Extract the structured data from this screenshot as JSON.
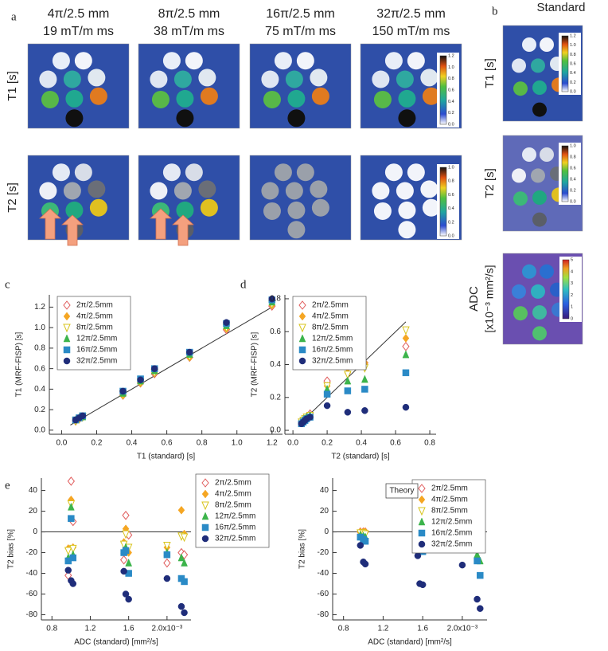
{
  "panel_labels": [
    "a",
    "b",
    "c",
    "d",
    "e"
  ],
  "panel_a": {
    "columns": [
      {
        "line1": "4π/2.5 mm",
        "line2": "19 mT/m ms"
      },
      {
        "line1": "8π/2.5 mm",
        "line2": "38 mT/m ms"
      },
      {
        "line1": "16π/2.5 mm",
        "line2": "75 mT/m ms"
      },
      {
        "line1": "32π/2.5 mm",
        "line2": "150 mT/m ms"
      }
    ],
    "rows": [
      "T1 [s]",
      "T2 [s]"
    ],
    "t1_colorbar": [
      "0.0",
      "0.2",
      "0.4",
      "0.6",
      "0.8",
      "1.0",
      "1.2"
    ],
    "t2_colorbar": [
      "0.0",
      "0.2",
      "0.4",
      "0.6",
      "0.8",
      "1.0"
    ]
  },
  "panel_b": {
    "title": "Standard",
    "rows": [
      "T1 [s]",
      "T2 [s]"
    ],
    "adc_label_1": "ADC",
    "adc_label_2": "[x10⁻³ mm²/s]",
    "t1_colorbar": [
      "0.0",
      "0.2",
      "0.4",
      "0.6",
      "0.8",
      "1.0",
      "1.2"
    ],
    "t2_colorbar": [
      "0.0",
      "0.2",
      "0.4",
      "0.6",
      "0.8",
      "1.0"
    ],
    "adc_colorbar": [
      "0",
      "1",
      "2",
      "3",
      "4",
      "5"
    ]
  },
  "chart_data": [
    {
      "type": "scatter",
      "x_label": "T1 (standard) [s]",
      "y_label": "T1 (MRF-FISP) [s]",
      "legend": "upper left",
      "x": [
        0.08,
        0.1,
        0.12,
        0.35,
        0.45,
        0.53,
        0.73,
        0.94,
        1.2
      ],
      "xlim": [
        -0.07,
        1.26
      ],
      "ylim": [
        -0.04,
        1.32
      ],
      "xticks": [
        {
          "value": 0,
          "label": "0.0"
        },
        {
          "value": 0.2,
          "label": "0.2"
        },
        {
          "value": 0.4,
          "label": "0.4"
        },
        {
          "value": 0.6,
          "label": "0.6"
        },
        {
          "value": 0.8,
          "label": "0.8"
        },
        {
          "value": 1,
          "label": "1.0"
        },
        {
          "value": 1.2,
          "label": "1.2"
        }
      ],
      "yticks": [
        {
          "value": 0,
          "label": "0.0"
        },
        {
          "value": 0.2,
          "label": "0.2"
        },
        {
          "value": 0.4,
          "label": "0.4"
        },
        {
          "value": 0.6,
          "label": "0.6"
        },
        {
          "value": 0.8,
          "label": "0.8"
        },
        {
          "value": 1,
          "label": "1.0"
        },
        {
          "value": 1.2,
          "label": "1.2"
        }
      ],
      "fit_line": {
        "x": [
          0.05,
          1.2
        ],
        "y": [
          0.05,
          1.2
        ]
      },
      "series": [
        {
          "name": "2π/2.5mm",
          "color": "#e05a5a",
          "marker": "open-diamond",
          "values": [
            0.09,
            0.11,
            0.13,
            0.34,
            0.46,
            0.55,
            0.71,
            0.98,
            1.21
          ]
        },
        {
          "name": "4π/2.5mm",
          "color": "#f5a623",
          "marker": "diamond",
          "values": [
            0.09,
            0.11,
            0.13,
            0.34,
            0.46,
            0.56,
            0.71,
            0.99,
            1.22
          ]
        },
        {
          "name": "8π/2.5mm",
          "color": "#d8c41c",
          "marker": "open-triangle-down",
          "values": [
            0.09,
            0.11,
            0.13,
            0.35,
            0.47,
            0.56,
            0.72,
            1.0,
            1.23
          ]
        },
        {
          "name": "12π/2.5mm",
          "color": "#3cb44b",
          "marker": "triangle",
          "values": [
            0.1,
            0.12,
            0.13,
            0.36,
            0.48,
            0.58,
            0.74,
            1.02,
            1.25
          ]
        },
        {
          "name": "16π/2.5mm",
          "color": "#2a8ac6",
          "marker": "square",
          "values": [
            0.1,
            0.12,
            0.14,
            0.38,
            0.5,
            0.6,
            0.76,
            1.04,
            1.27
          ]
        },
        {
          "name": "32π/2.5mm",
          "color": "#1f2d7a",
          "marker": "circle",
          "values": [
            0.1,
            0.12,
            0.14,
            0.38,
            0.49,
            0.6,
            0.76,
            1.05,
            1.28
          ]
        }
      ]
    },
    {
      "type": "scatter",
      "x_label": "T2 (standard) [s]",
      "y_label": "T2 (MRF-FISP) [s]",
      "legend": "upper left",
      "x": [
        0.05,
        0.06,
        0.07,
        0.08,
        0.1,
        0.2,
        0.32,
        0.42,
        0.66
      ],
      "xlim": [
        -0.047,
        0.837
      ],
      "ylim": [
        -0.024,
        0.824
      ],
      "xticks": [
        {
          "value": 0,
          "label": "0.0"
        },
        {
          "value": 0.2,
          "label": "0.2"
        },
        {
          "value": 0.4,
          "label": "0.4"
        },
        {
          "value": 0.6,
          "label": "0.6"
        },
        {
          "value": 0.8,
          "label": "0.8"
        }
      ],
      "yticks": [
        {
          "value": 0,
          "label": "0.0"
        },
        {
          "value": 0.2,
          "label": "0.2"
        },
        {
          "value": 0.4,
          "label": "0.4"
        },
        {
          "value": 0.6,
          "label": "0.6"
        },
        {
          "value": 0.8,
          "label": "0.8"
        }
      ],
      "fit_line": {
        "x": [
          0.05,
          0.66
        ],
        "y": [
          0.05,
          0.66
        ]
      },
      "series": [
        {
          "name": "2π/2.5mm",
          "color": "#e05a5a",
          "marker": "open-diamond",
          "values": [
            0.05,
            0.06,
            0.07,
            0.08,
            0.1,
            0.3,
            0.38,
            0.41,
            0.51
          ]
        },
        {
          "name": "4π/2.5mm",
          "color": "#f5a623",
          "marker": "diamond",
          "values": [
            0.05,
            0.06,
            0.07,
            0.08,
            0.09,
            0.27,
            0.35,
            0.41,
            0.56
          ]
        },
        {
          "name": "8π/2.5mm",
          "color": "#d8c41c",
          "marker": "open-triangle-down",
          "values": [
            0.05,
            0.06,
            0.07,
            0.08,
            0.09,
            0.27,
            0.34,
            0.38,
            0.61
          ]
        },
        {
          "name": "12π/2.5mm",
          "color": "#3cb44b",
          "marker": "triangle",
          "values": [
            0.05,
            0.06,
            0.07,
            0.08,
            0.09,
            0.25,
            0.3,
            0.31,
            0.46
          ]
        },
        {
          "name": "16π/2.5mm",
          "color": "#2a8ac6",
          "marker": "square",
          "values": [
            0.04,
            0.05,
            0.06,
            0.07,
            0.08,
            0.22,
            0.24,
            0.25,
            0.35
          ]
        },
        {
          "name": "32π/2.5mm",
          "color": "#1f2d7a",
          "marker": "circle",
          "values": [
            0.04,
            0.05,
            0.06,
            0.07,
            0.08,
            0.15,
            0.11,
            0.12,
            0.14
          ]
        }
      ]
    },
    {
      "type": "scatter",
      "x_label": "ADC (standard) [mm²/s]",
      "y_label": "T2 bias [%]",
      "legend": "outside right",
      "x": [
        0.97,
        1.0,
        1.02,
        1.55,
        1.57,
        1.6,
        2.0,
        2.15,
        2.18
      ],
      "xlim": [
        0.69,
        2.25
      ],
      "ylim": [
        -85,
        52
      ],
      "xticks": [
        0.8,
        1.2,
        1.6,
        {
          "value": 2,
          "label": "2.0x10⁻³"
        }
      ],
      "yticks": [
        -80,
        -60,
        -40,
        -20,
        0,
        20,
        40
      ],
      "reference_y": 0,
      "series": [
        {
          "name": "2π/2.5mm",
          "color": "#e05a5a",
          "marker": "open-diamond",
          "values": [
            -42,
            49,
            10,
            -27,
            16,
            -3,
            -30,
            -20,
            -22
          ]
        },
        {
          "name": "4π/2.5mm",
          "color": "#f5a623",
          "marker": "diamond",
          "values": [
            -16,
            31,
            -15,
            -10,
            3,
            -20,
            -15,
            21,
            -2
          ]
        },
        {
          "name": "8π/2.5mm",
          "color": "#d8c41c",
          "marker": "open-triangle-down",
          "values": [
            -18,
            27,
            -16,
            -12,
            -2,
            -15,
            -13,
            -4,
            -5
          ]
        },
        {
          "name": "12π/2.5mm",
          "color": "#3cb44b",
          "marker": "triangle",
          "values": [
            -25,
            24,
            -22,
            -18,
            -15,
            -30,
            -20,
            -25,
            -30
          ]
        },
        {
          "name": "16π/2.5mm",
          "color": "#2a8ac6",
          "marker": "square",
          "values": [
            -28,
            13,
            -25,
            -20,
            -18,
            -40,
            -22,
            -45,
            -48
          ]
        },
        {
          "name": "32π/2.5mm",
          "color": "#1f2d7a",
          "marker": "circle",
          "values": [
            -37,
            -47,
            -50,
            -38,
            -60,
            -65,
            -45,
            -72,
            -78
          ]
        }
      ]
    },
    {
      "type": "scatter",
      "x_label": "ADC (standard) [mm²/s]",
      "y_label": "T2 bias [%]",
      "legend": "upper right",
      "annotation": "Theory",
      "x": [
        0.97,
        1.0,
        1.02,
        1.55,
        1.57,
        1.6,
        2.0,
        2.15,
        2.18
      ],
      "xlim": [
        0.69,
        2.25
      ],
      "ylim": [
        -85,
        52
      ],
      "xticks": [
        0.8,
        1.2,
        1.6,
        {
          "value": 2,
          "label": "2.0x10⁻³"
        }
      ],
      "yticks": [
        -80,
        -60,
        -40,
        -20,
        0,
        20,
        40
      ],
      "reference_y": 0,
      "series": [
        {
          "name": "2π/2.5mm",
          "color": "#e05a5a",
          "marker": "open-diamond",
          "values": [
            0,
            0,
            0,
            0,
            0,
            0,
            0,
            0,
            0
          ]
        },
        {
          "name": "4π/2.5mm",
          "color": "#f5a623",
          "marker": "diamond",
          "values": [
            0,
            0,
            0,
            0,
            0,
            0,
            0,
            0,
            -1
          ]
        },
        {
          "name": "8π/2.5mm",
          "color": "#d8c41c",
          "marker": "open-triangle-down",
          "values": [
            -1,
            -1,
            -2,
            -1,
            -1,
            -2,
            -3,
            -10,
            -12
          ]
        },
        {
          "name": "12π/2.5mm",
          "color": "#3cb44b",
          "marker": "triangle",
          "values": [
            -3,
            -4,
            -5,
            -3,
            -5,
            -8,
            -5,
            -22,
            -28
          ]
        },
        {
          "name": "16π/2.5mm",
          "color": "#2a8ac6",
          "marker": "square",
          "values": [
            -5,
            -7,
            -9,
            -6,
            -15,
            -19,
            -10,
            -28,
            -42
          ]
        },
        {
          "name": "32π/2.5mm",
          "color": "#1f2d7a",
          "marker": "circle",
          "values": [
            -13,
            -29,
            -31,
            -23,
            -50,
            -51,
            -32,
            -65,
            -74
          ]
        }
      ]
    }
  ]
}
